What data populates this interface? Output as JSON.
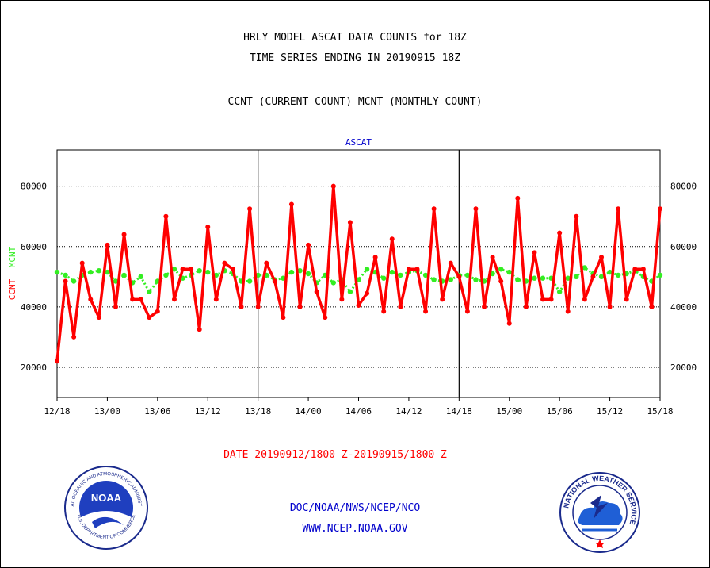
{
  "header": {
    "title_line1": "HRLY MODEL ASCAT DATA COUNTS for 18Z",
    "title_line2": "TIME SERIES ENDING IN 20190915 18Z",
    "subtitle": "CCNT (CURRENT COUNT) MCNT (MONTHLY COUNT)"
  },
  "footer": {
    "date_range": "DATE 20190912/1800 Z-20190915/1800 Z",
    "org_path": "DOC/NOAA/NWS/NCEP/NCO",
    "website": "WWW.NCEP.NOAA.GOV"
  },
  "logos": {
    "noaa_center": "NOAA",
    "noaa_ring_top": "NATIONAL OCEANIC AND ATMOSPHERIC ADMINISTRATION",
    "noaa_ring_bottom": "U.S. DEPARTMENT OF COMMERCE",
    "nws_ring": "NATIONAL WEATHER SERVICE"
  },
  "colors": {
    "ccnt": "#ff0000",
    "mcnt": "#33ee22",
    "panel_title": "#0000cc",
    "footer_text": "#0000cc",
    "date_text": "#ff0000"
  },
  "chart_data": {
    "type": "line",
    "panel_title": "ASCAT",
    "ylabel_ccnt": "CCNT",
    "ylabel_mcnt": "MCNT",
    "x_tick_labels": [
      "12/18",
      "13/00",
      "13/06",
      "13/12",
      "13/18",
      "14/00",
      "14/06",
      "14/12",
      "14/18",
      "15/00",
      "15/06",
      "15/12",
      "15/18"
    ],
    "y_tick_labels": [
      "20000",
      "40000",
      "60000",
      "80000"
    ],
    "ylim": [
      10000,
      92000
    ],
    "grid": "horizontal dotted",
    "x_unit": "hours from 12/18",
    "x": [
      0,
      1,
      2,
      3,
      4,
      5,
      6,
      7,
      8,
      9,
      10,
      11,
      12,
      13,
      14,
      15,
      16,
      17,
      18,
      19,
      20,
      21,
      22,
      23,
      24,
      25,
      26,
      27,
      28,
      29,
      30,
      31,
      32,
      33,
      34,
      35,
      36,
      37,
      38,
      39,
      40,
      41,
      42,
      43,
      44,
      45,
      46,
      47,
      48,
      49,
      50,
      51,
      52,
      53,
      54,
      55,
      56,
      57,
      58,
      59,
      60,
      61,
      62,
      63,
      64,
      65,
      66,
      67,
      68,
      69,
      70,
      71,
      72
    ],
    "series": [
      {
        "name": "CCNT",
        "values": [
          22000,
          48500,
          30000,
          54500,
          42500,
          36500,
          60500,
          40000,
          64000,
          42500,
          42500,
          36500,
          38500,
          70000,
          42500,
          52500,
          52500,
          32500,
          66500,
          42500,
          54500,
          52500,
          40000,
          72500,
          40000,
          54500,
          48500,
          36500,
          74000,
          40000,
          60500,
          45000,
          36500,
          80000,
          42500,
          68000,
          40500,
          44500,
          56500,
          38500,
          62500,
          40000,
          52500,
          52500,
          38500,
          72500,
          42500,
          54500,
          50000,
          38500,
          72500,
          40000,
          56500,
          48500,
          34500,
          76000,
          40000,
          58000,
          42500,
          42500,
          64500,
          38500,
          70000,
          42500,
          50000,
          56500,
          40000,
          72500,
          42500,
          52500,
          52500,
          40000,
          72500
        ]
      },
      {
        "name": "MCNT",
        "values": [
          51500,
          50500,
          48500,
          50500,
          51500,
          52000,
          51500,
          48500,
          50500,
          48000,
          50000,
          45000,
          48500,
          50500,
          52500,
          49500,
          50500,
          52000,
          51500,
          50500,
          52000,
          51000,
          48500,
          48500,
          50500,
          50500,
          49000,
          49500,
          51500,
          52000,
          51000,
          48000,
          50500,
          48000,
          49000,
          45000,
          49000,
          52500,
          51500,
          49500,
          51500,
          50500,
          51500,
          52000,
          50500,
          49000,
          48500,
          49000,
          50500,
          50500,
          49000,
          48500,
          51000,
          52500,
          51500,
          49000,
          48500,
          49500,
          49500,
          49500,
          45000,
          49500,
          50000,
          53000,
          51000,
          50000,
          51500,
          50500,
          51000,
          52000,
          50000,
          48500,
          50500
        ]
      }
    ]
  }
}
